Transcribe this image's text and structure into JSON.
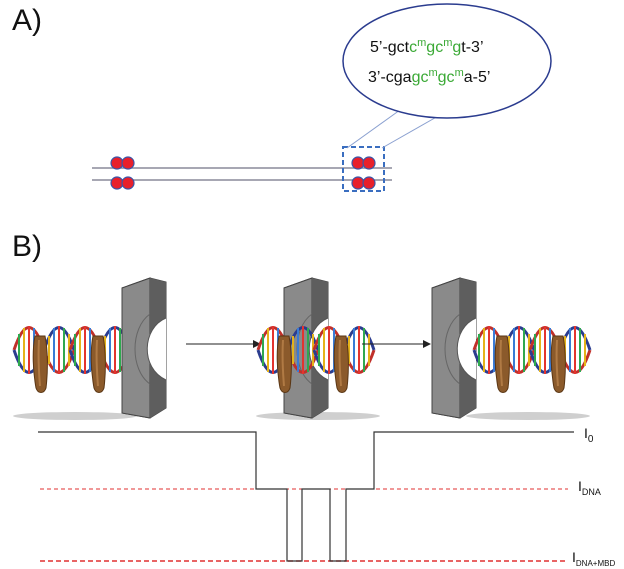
{
  "panel_a": {
    "label": "A)",
    "seq_top": [
      {
        "t": "5’-gct",
        "m": false
      },
      {
        "t": "c",
        "m": true
      },
      {
        "t": "m",
        "m": true,
        "sup": true
      },
      {
        "t": "gc",
        "m": true
      },
      {
        "t": "m",
        "m": true,
        "sup": true
      },
      {
        "t": "g",
        "m": true
      },
      {
        "t": "t-3’",
        "m": false
      }
    ],
    "seq_bottom": [
      {
        "t": "3’-cga",
        "m": false
      },
      {
        "t": "gc",
        "m": true
      },
      {
        "t": "m",
        "m": true,
        "sup": true
      },
      {
        "t": "gc",
        "m": true
      },
      {
        "t": "m",
        "m": true,
        "sup": true
      },
      {
        "t": "a-5’",
        "m": false
      }
    ]
  },
  "panel_b": {
    "label": "B)",
    "levels": {
      "i0": {
        "main": "I",
        "sub": "0"
      },
      "idna": {
        "main": "I",
        "sub": "DNA"
      },
      "idna_mbd": {
        "main": "I",
        "sub": "DNA+MBD"
      }
    }
  },
  "colors": {
    "methyl_green": "#3aa935",
    "bead_red": "#e8202a",
    "bead_outline": "#3a55a8",
    "dashed_box": "#3a6ec0",
    "level_dash": "#e03030",
    "pore_gray": "#7a7a7a",
    "strand_red": "#c0302a",
    "strand_blue": "#2b3c8f",
    "protein_brown": "#8b5a2b"
  },
  "icons": [
    "nanopore-icon",
    "dna-helix-icon",
    "methyl-binding-protein-icon",
    "arrow-right-icon"
  ]
}
